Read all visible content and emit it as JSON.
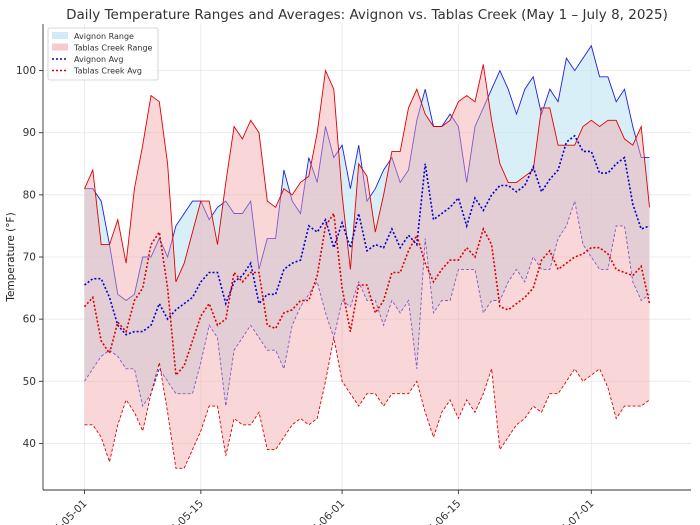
{
  "chart_data": {
    "type": "area",
    "title": "Daily Temperature Ranges and Averages: Avignon vs. Tablas Creek (May 1 – July 8, 2025)",
    "xlabel": "",
    "ylabel": "Temperature (°F)",
    "ylim": [
      32.5,
      107.5
    ],
    "y_ticks": [
      40,
      50,
      60,
      70,
      80,
      90,
      100
    ],
    "x_range": [
      "2025-04-26",
      "2025-07-13"
    ],
    "x_ticks": [
      "2025-05-01",
      "2025-05-15",
      "2025-06-01",
      "2025-06-15",
      "2025-07-01"
    ],
    "x_tick_labels": [
      "2025-05-01",
      "2025-05-15",
      "2025-06-01",
      "2025-06-15",
      "2025-07-01"
    ],
    "grid": true,
    "legend_position": "top-left",
    "dates": [
      "2025-05-01",
      "2025-05-02",
      "2025-05-03",
      "2025-05-04",
      "2025-05-05",
      "2025-05-06",
      "2025-05-07",
      "2025-05-08",
      "2025-05-09",
      "2025-05-10",
      "2025-05-11",
      "2025-05-12",
      "2025-05-13",
      "2025-05-14",
      "2025-05-15",
      "2025-05-16",
      "2025-05-17",
      "2025-05-18",
      "2025-05-19",
      "2025-05-20",
      "2025-05-21",
      "2025-05-22",
      "2025-05-23",
      "2025-05-24",
      "2025-05-25",
      "2025-05-26",
      "2025-05-27",
      "2025-05-28",
      "2025-05-29",
      "2025-05-30",
      "2025-05-31",
      "2025-06-01",
      "2025-06-02",
      "2025-06-03",
      "2025-06-04",
      "2025-06-05",
      "2025-06-06",
      "2025-06-07",
      "2025-06-08",
      "2025-06-09",
      "2025-06-10",
      "2025-06-11",
      "2025-06-12",
      "2025-06-13",
      "2025-06-14",
      "2025-06-15",
      "2025-06-16",
      "2025-06-17",
      "2025-06-18",
      "2025-06-19",
      "2025-06-20",
      "2025-06-21",
      "2025-06-22",
      "2025-06-23",
      "2025-06-24",
      "2025-06-25",
      "2025-06-26",
      "2025-06-27",
      "2025-06-28",
      "2025-06-29",
      "2025-06-30",
      "2025-07-01",
      "2025-07-02",
      "2025-07-03",
      "2025-07-04",
      "2025-07-05",
      "2025-07-06",
      "2025-07-07",
      "2025-07-08"
    ],
    "series": [
      {
        "name": "Avignon Range",
        "kind": "band",
        "color": "#add8e6",
        "high": [
          81,
          81,
          79,
          72,
          64,
          63,
          64,
          70,
          70,
          73,
          70,
          75,
          77,
          79,
          79,
          76,
          78,
          79,
          77,
          77,
          79,
          68,
          73,
          73,
          84,
          79,
          77,
          86,
          82,
          91,
          86,
          88,
          81,
          88,
          79,
          81,
          84,
          86,
          82,
          84,
          92,
          97,
          91,
          91,
          93,
          91,
          82,
          91,
          94,
          97,
          100,
          97,
          93,
          97,
          99,
          93,
          97,
          95,
          102,
          100,
          102,
          104,
          99,
          99,
          95,
          97,
          91,
          86,
          86
        ],
        "low": [
          50,
          52,
          54,
          55,
          54,
          52,
          52,
          46,
          48,
          52,
          50,
          48,
          48,
          48,
          53,
          59,
          57,
          46,
          55,
          57,
          59,
          57,
          55,
          55,
          52,
          59,
          62,
          64,
          66,
          61,
          57,
          63,
          62,
          66,
          63,
          63,
          59,
          63,
          61,
          63,
          52,
          73,
          61,
          63,
          63,
          68,
          68,
          68,
          61,
          63,
          63,
          66,
          68,
          66,
          70,
          68,
          68,
          73,
          75,
          79,
          72,
          70,
          68,
          68,
          75,
          75,
          66,
          63,
          64
        ]
      },
      {
        "name": "Tablas Creek Range",
        "kind": "band",
        "color": "#f4a3a8",
        "high": [
          81,
          84,
          72,
          72,
          76,
          69,
          81,
          88,
          96,
          95,
          85,
          66,
          69,
          74,
          79,
          79,
          72,
          82,
          91,
          89,
          92,
          90,
          79,
          78,
          81,
          80,
          82,
          83,
          90,
          100,
          97,
          80,
          68,
          85,
          83,
          74,
          80,
          87,
          87,
          94,
          97,
          93,
          91,
          91,
          92,
          95,
          96,
          95,
          101,
          92,
          85,
          82,
          82,
          83,
          84,
          94,
          94,
          88,
          88,
          88,
          91,
          92,
          91,
          92,
          92,
          89,
          88,
          91,
          78
        ],
        "low": [
          43,
          43,
          41,
          37,
          43,
          47,
          45,
          42,
          48,
          53,
          45,
          36,
          36,
          39,
          42,
          46,
          46,
          38,
          44,
          43,
          43,
          45,
          39,
          39,
          41,
          43,
          44,
          43,
          44,
          50,
          57,
          50,
          48,
          46,
          48,
          48,
          46,
          48,
          48,
          48,
          50,
          45,
          41,
          45,
          47,
          44,
          47,
          45,
          48,
          52,
          39,
          41,
          43,
          44,
          46,
          45,
          48,
          48,
          50,
          52,
          50,
          51,
          52,
          49,
          44,
          46,
          46,
          46,
          47
        ]
      },
      {
        "name": "Avignon Avg",
        "kind": "line",
        "color": "#0000cc",
        "values": [
          65.5,
          66.5,
          66.5,
          63.5,
          59,
          57.5,
          58,
          58,
          59,
          62.5,
          60,
          61.5,
          62.5,
          63.5,
          66,
          67.5,
          67.5,
          62.5,
          66,
          67,
          69,
          62.5,
          64,
          64,
          68,
          69,
          69.5,
          75,
          74,
          76,
          71.5,
          75.5,
          71.5,
          77,
          71,
          72,
          71.5,
          74.5,
          71.5,
          73.5,
          72,
          85,
          76,
          77,
          78,
          79.5,
          75,
          79.5,
          77.5,
          80,
          81.5,
          81.5,
          80.5,
          81.5,
          84.5,
          80.5,
          82.5,
          84,
          88.5,
          89.5,
          87,
          87,
          83.5,
          83.5,
          85,
          86,
          78.5,
          74.5,
          75
        ]
      },
      {
        "name": "Tablas Creek Avg",
        "kind": "line",
        "color": "#dd0000",
        "values": [
          62,
          63.5,
          56.5,
          54.5,
          59.5,
          58,
          63,
          65,
          72,
          74,
          65,
          51,
          52.5,
          56.5,
          60.5,
          62.5,
          59,
          60,
          67.5,
          66,
          67.5,
          67.5,
          59,
          58.5,
          61,
          61.5,
          63,
          63,
          67,
          75,
          77,
          65,
          58,
          65.5,
          65.5,
          61,
          63,
          67.5,
          67.5,
          71,
          73.5,
          69,
          66,
          68,
          69.5,
          69.5,
          71.5,
          70,
          74.5,
          72,
          62,
          61.5,
          62.5,
          63.5,
          65,
          69.5,
          71,
          68,
          69,
          70,
          70.5,
          71.5,
          71.5,
          70.5,
          68,
          67.5,
          67,
          68.5,
          62.5
        ]
      }
    ]
  }
}
